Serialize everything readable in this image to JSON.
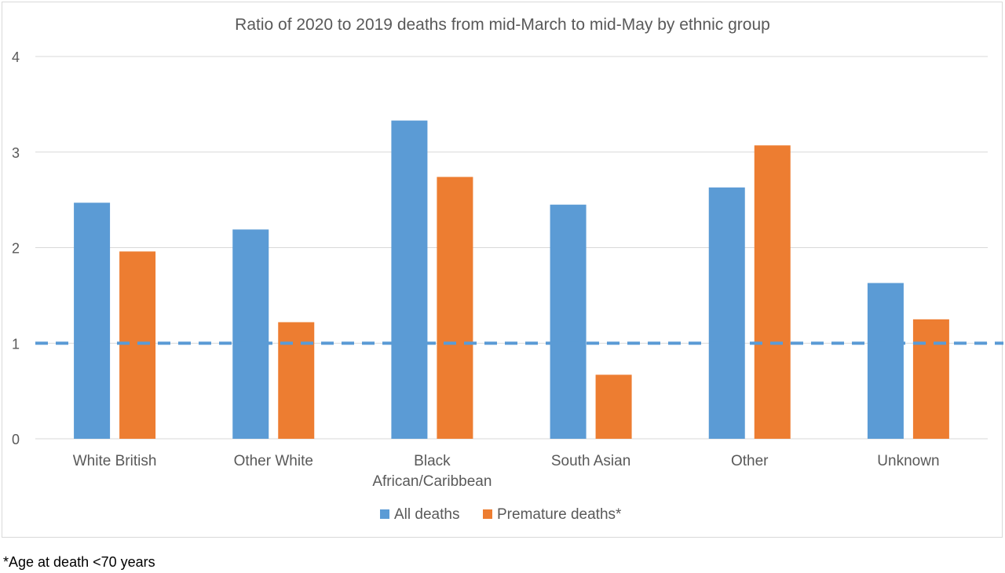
{
  "chart_data": {
    "type": "bar",
    "title": "Ratio of 2020 to 2019 deaths from mid-March to mid-May by ethnic group",
    "categories": [
      "White British",
      "Other White",
      "Black African/Caribbean",
      "South Asian",
      "Other",
      "Unknown"
    ],
    "category_lines": [
      [
        "White British"
      ],
      [
        "Other White"
      ],
      [
        "Black",
        "African/Caribbean"
      ],
      [
        "South Asian"
      ],
      [
        "Other"
      ],
      [
        "Unknown"
      ]
    ],
    "series": [
      {
        "name": "All deaths",
        "color": "#5b9bd5",
        "values": [
          2.47,
          2.19,
          3.33,
          2.45,
          2.63,
          1.63
        ]
      },
      {
        "name": "Premature deaths*",
        "color": "#ed7d31",
        "values": [
          1.96,
          1.22,
          2.74,
          0.67,
          3.07,
          1.25
        ]
      }
    ],
    "ylim": [
      0,
      4
    ],
    "yticks": [
      0,
      1,
      2,
      3,
      4
    ],
    "reference_line": {
      "value": 1,
      "style": "dashed",
      "color": "#5b9bd5"
    },
    "grid": true,
    "legend_position": "bottom",
    "xlabel": "",
    "ylabel": ""
  },
  "footnote": "*Age at death <70 years"
}
